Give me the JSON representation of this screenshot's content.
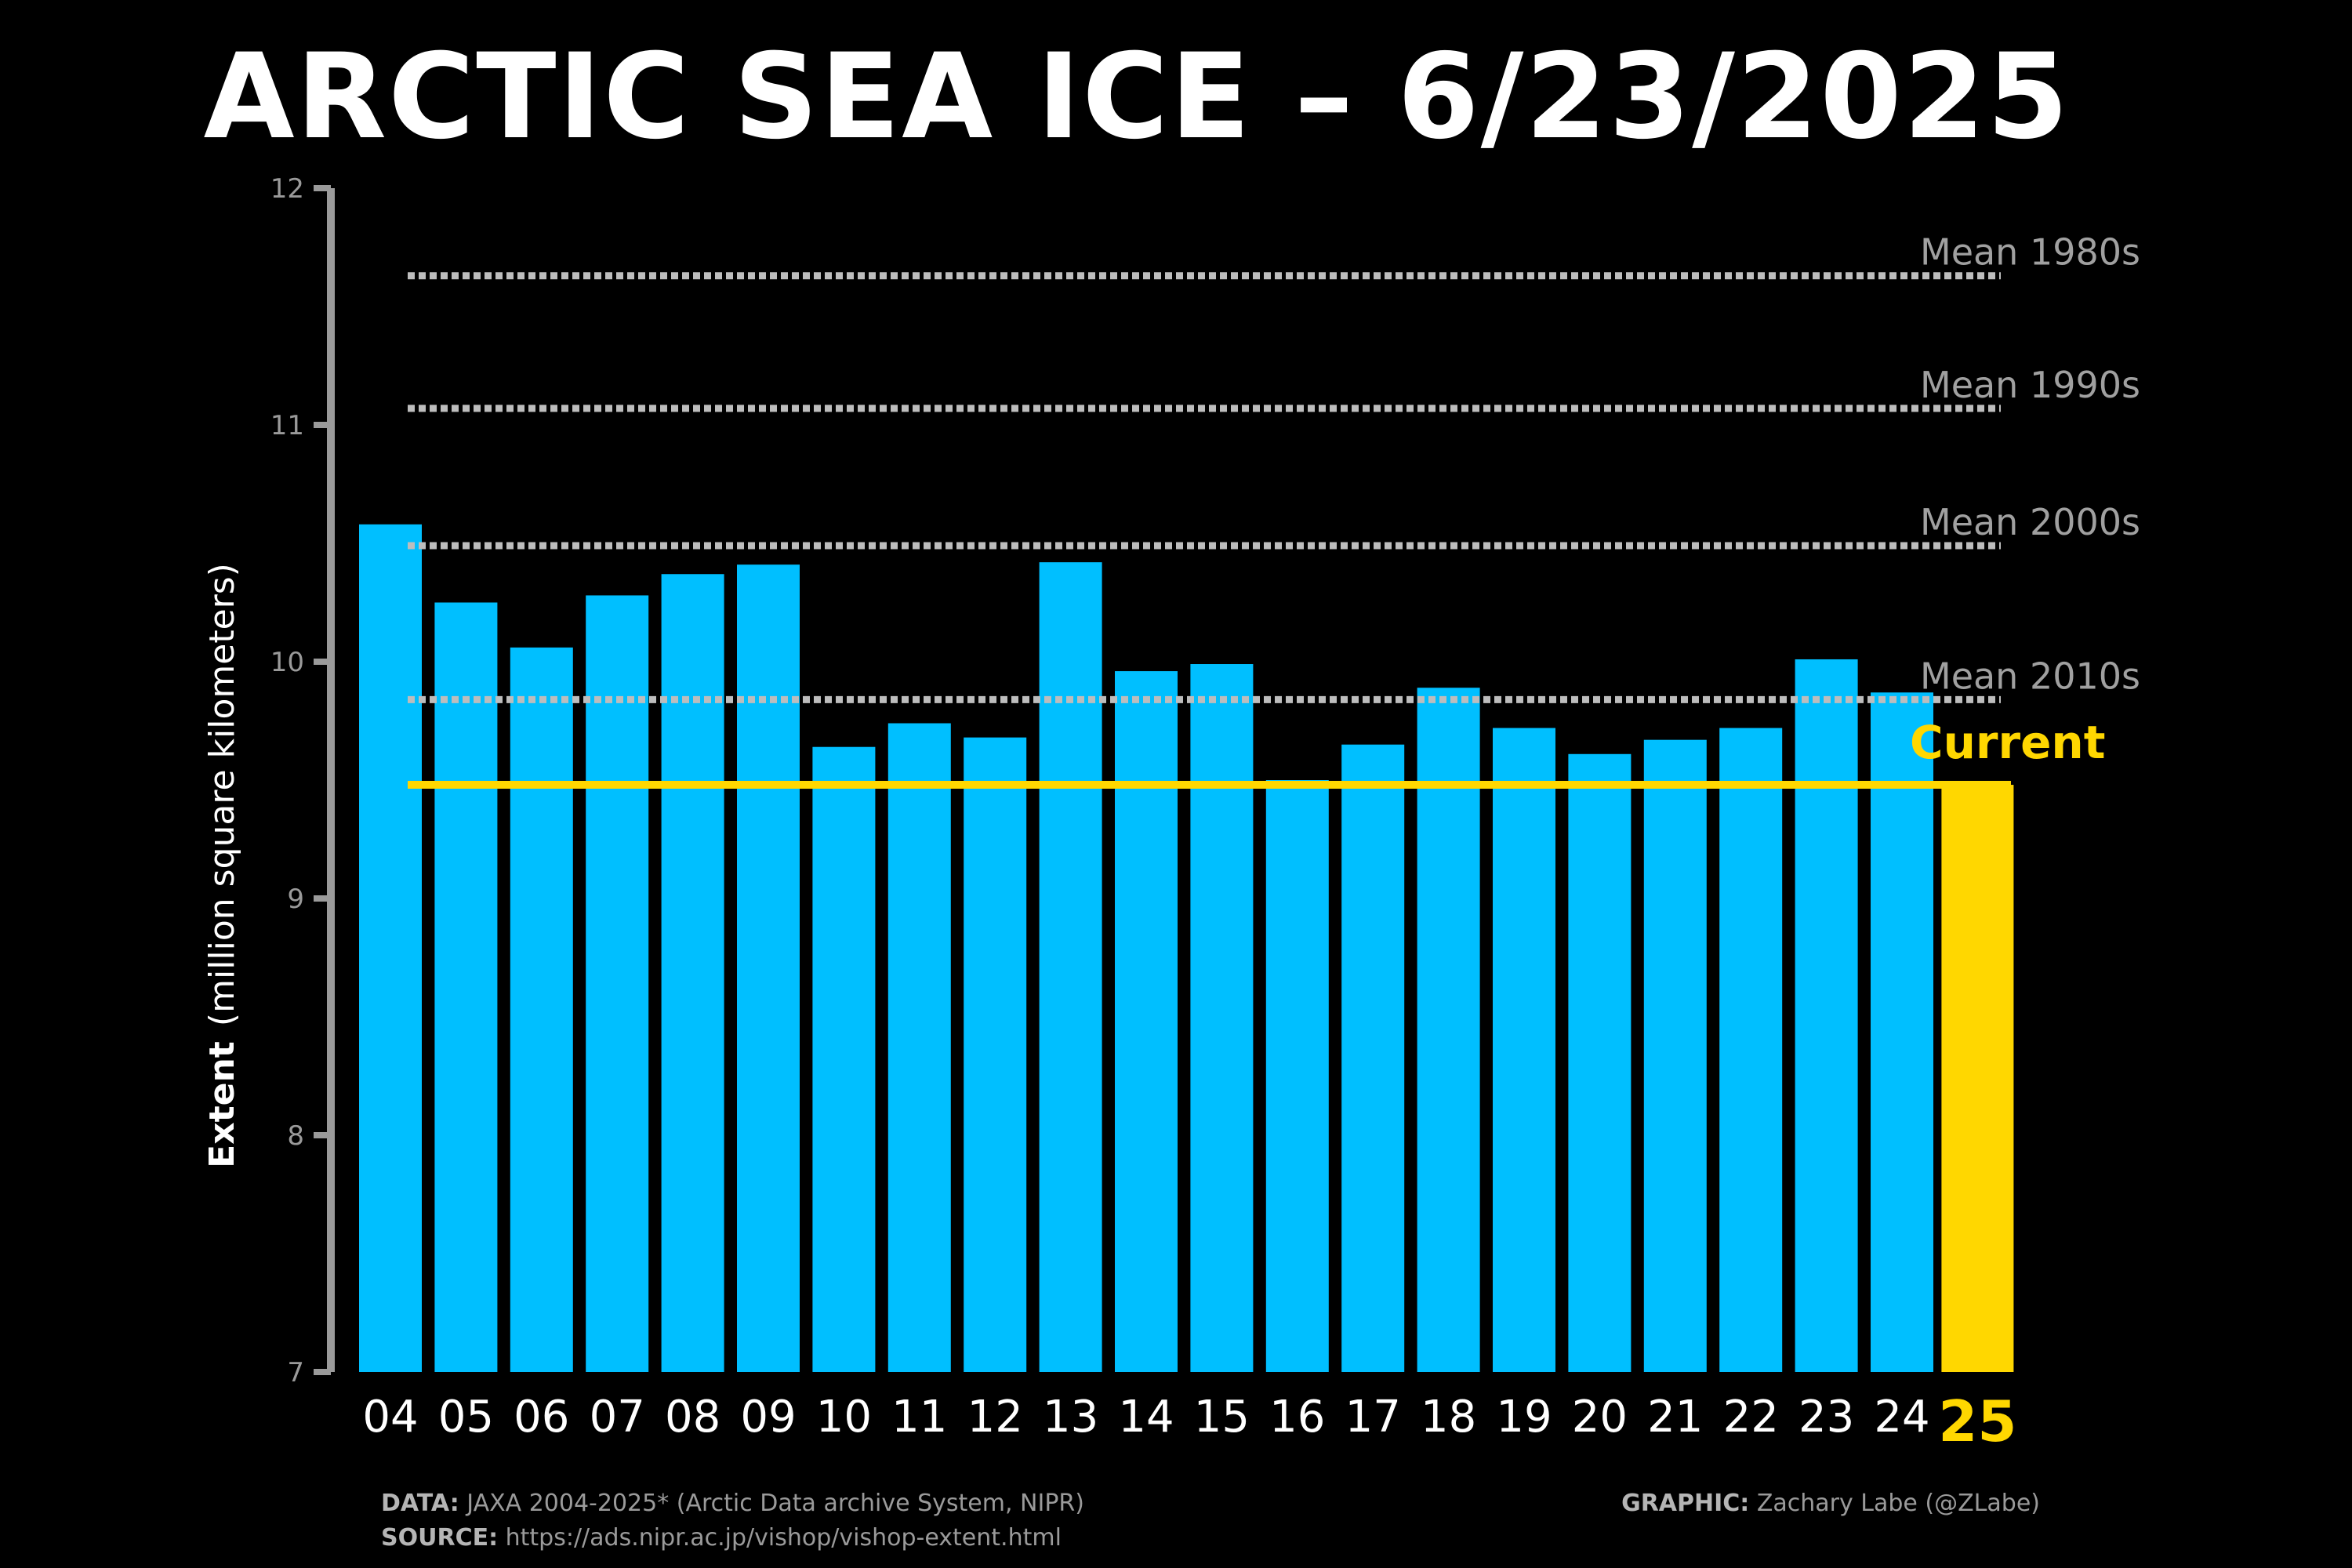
{
  "title": "ARCTIC SEA ICE – 6/23/2025",
  "chart_data": {
    "type": "bar",
    "title": "ARCTIC SEA ICE – 6/23/2025",
    "ylabel_bold": "Extent",
    "ylabel_rest": "(million square kilometers)",
    "ylim": [
      7,
      12
    ],
    "yticks": [
      7,
      8,
      9,
      10,
      11,
      12
    ],
    "categories": [
      "04",
      "05",
      "06",
      "07",
      "08",
      "09",
      "10",
      "11",
      "12",
      "13",
      "14",
      "15",
      "16",
      "17",
      "18",
      "19",
      "20",
      "21",
      "22",
      "23",
      "24",
      "25"
    ],
    "values": [
      10.58,
      10.25,
      10.06,
      10.28,
      10.37,
      10.41,
      9.64,
      9.74,
      9.68,
      10.42,
      9.96,
      9.99,
      9.5,
      9.65,
      9.89,
      9.72,
      9.61,
      9.67,
      9.72,
      10.01,
      9.87,
      9.48
    ],
    "highlight_category": "25",
    "bar_color": "#00bfff",
    "highlight_color": "#ffd700",
    "reference_lines": [
      {
        "label": "Mean 1980s",
        "value": 11.63
      },
      {
        "label": "Mean 1990s",
        "value": 11.07
      },
      {
        "label": "Mean 2000s",
        "value": 10.49
      },
      {
        "label": "Mean 2010s",
        "value": 9.84
      }
    ],
    "current_line": {
      "label": "Current",
      "value": 9.48
    },
    "grid": false
  },
  "footer": {
    "data_key": "DATA:",
    "data_value": "JAXA 2004-2025* (Arctic Data archive System, NIPR)",
    "source_key": "SOURCE:",
    "source_value": "https://ads.nipr.ac.jp/vishop/vishop-extent.html",
    "graphic_key": "GRAPHIC:",
    "graphic_value": "Zachary Labe (@ZLabe)"
  }
}
